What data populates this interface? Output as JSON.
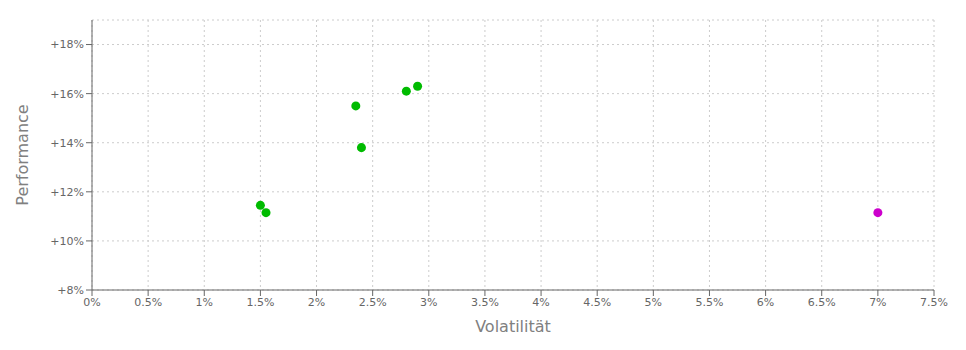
{
  "chart_data": {
    "type": "scatter",
    "xlabel": "Volatilität",
    "ylabel": "Performance",
    "xlim": [
      0.0,
      0.075
    ],
    "ylim": [
      0.08,
      0.19
    ],
    "xticks": [
      {
        "value": 0.0,
        "label": "0%"
      },
      {
        "value": 0.005,
        "label": "0.5%"
      },
      {
        "value": 0.01,
        "label": "1%"
      },
      {
        "value": 0.015,
        "label": "1.5%"
      },
      {
        "value": 0.02,
        "label": "2%"
      },
      {
        "value": 0.025,
        "label": "2.5%"
      },
      {
        "value": 0.03,
        "label": "3%"
      },
      {
        "value": 0.035,
        "label": "3.5%"
      },
      {
        "value": 0.04,
        "label": "4%"
      },
      {
        "value": 0.045,
        "label": "4.5%"
      },
      {
        "value": 0.05,
        "label": "5%"
      },
      {
        "value": 0.055,
        "label": "5.5%"
      },
      {
        "value": 0.06,
        "label": "6%"
      },
      {
        "value": 0.065,
        "label": "6.5%"
      },
      {
        "value": 0.07,
        "label": "7%"
      },
      {
        "value": 0.075,
        "label": "7.5%"
      }
    ],
    "yticks": [
      {
        "value": 0.08,
        "label": "+8%"
      },
      {
        "value": 0.1,
        "label": "+10%"
      },
      {
        "value": 0.12,
        "label": "+12%"
      },
      {
        "value": 0.14,
        "label": "+14%"
      },
      {
        "value": 0.16,
        "label": "+16%"
      },
      {
        "value": 0.18,
        "label": "+18%"
      }
    ],
    "grid": true,
    "series": [
      {
        "color": "#00bb00",
        "x": [
          0.015,
          0.0155,
          0.0235,
          0.024,
          0.028,
          0.029
        ],
        "values": [
          0.1145,
          0.1115,
          0.155,
          0.138,
          0.161,
          0.163
        ]
      },
      {
        "color": "#cc00cc",
        "x": [
          0.07
        ],
        "values": [
          0.1115
        ]
      }
    ]
  }
}
